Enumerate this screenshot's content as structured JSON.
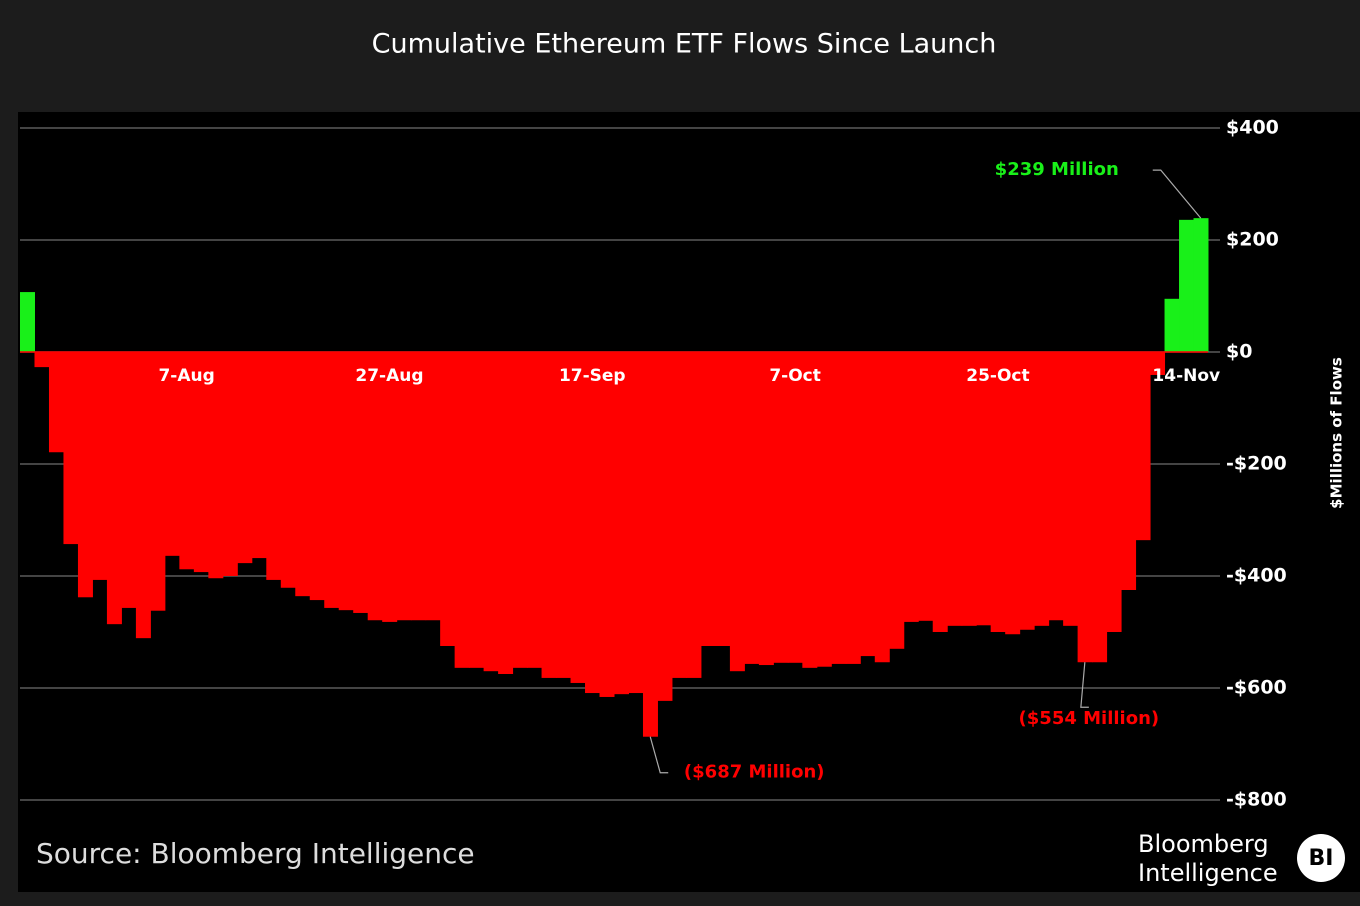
{
  "chart_data": {
    "type": "bar",
    "title": "Cumulative Ethereum ETF Flows Since Launch",
    "y_axis_label": "$Millions of Flows",
    "source": "Source: Bloomberg Intelligence",
    "categories": [
      null,
      null,
      null,
      null,
      null,
      null,
      null,
      null,
      null,
      null,
      null,
      "7-Aug",
      null,
      null,
      null,
      null,
      null,
      null,
      null,
      null,
      null,
      null,
      null,
      null,
      null,
      "27-Aug",
      null,
      null,
      null,
      null,
      null,
      null,
      null,
      null,
      null,
      null,
      null,
      null,
      null,
      "17-Sep",
      null,
      null,
      null,
      null,
      null,
      null,
      null,
      null,
      null,
      null,
      null,
      null,
      null,
      "7-Oct",
      null,
      null,
      null,
      null,
      null,
      null,
      null,
      null,
      null,
      null,
      null,
      null,
      null,
      "25-Oct",
      null,
      null,
      null,
      null,
      null,
      null,
      null,
      null,
      null,
      null,
      null,
      null,
      "14-Nov",
      null
    ],
    "values": [
      107,
      -27,
      -179,
      -343,
      -438,
      -407,
      -486,
      -457,
      -511,
      -462,
      -364,
      -388,
      -393,
      -404,
      -400,
      -377,
      -368,
      -407,
      -421,
      -436,
      -443,
      -457,
      -461,
      -466,
      -479,
      -482,
      -479,
      -479,
      -479,
      -525,
      -564,
      -564,
      -570,
      -575,
      -564,
      -564,
      -582,
      -582,
      -591,
      -609,
      -616,
      -611,
      -609,
      -687,
      -623,
      -582,
      -582,
      -525,
      -525,
      -570,
      -557,
      -559,
      -555,
      -555,
      -564,
      -562,
      -557,
      -557,
      -543,
      -554,
      -530,
      -482,
      -480,
      -500,
      -489,
      -489,
      -488,
      -500,
      -504,
      -496,
      -489,
      -479,
      -489,
      -554,
      -554,
      -500,
      -425,
      -336,
      -41,
      95,
      236,
      239
    ],
    "value_labels": [
      null,
      null,
      null,
      null,
      null,
      null,
      null,
      null,
      null,
      null,
      null,
      null,
      null,
      null,
      null,
      null,
      null,
      null,
      null,
      null,
      null,
      null,
      null,
      null,
      null,
      null,
      null,
      null,
      null,
      null,
      null,
      null,
      null,
      null,
      null,
      null,
      null,
      null,
      null,
      null,
      null,
      null,
      null,
      "($687 Million)",
      null,
      null,
      null,
      null,
      null,
      null,
      null,
      null,
      null,
      null,
      null,
      null,
      null,
      null,
      null,
      null,
      null,
      null,
      null,
      null,
      null,
      null,
      null,
      null,
      null,
      null,
      null,
      null,
      null,
      "($554 Million)",
      null,
      null,
      null,
      null,
      null,
      null,
      null,
      "$239 Million"
    ],
    "positive_color": "#19f019",
    "negative_color": "#ff0000",
    "ylim": [
      -800,
      400
    ],
    "yticks": [
      {
        "value": 400,
        "label": "$400"
      },
      {
        "value": 200,
        "label": "$200"
      },
      {
        "value": 0,
        "label": "$0"
      },
      {
        "value": -200,
        "label": "-$200"
      },
      {
        "value": -400,
        "label": "-$400"
      },
      {
        "value": -600,
        "label": "-$600"
      },
      {
        "value": -800,
        "label": "-$800"
      }
    ],
    "grid": true
  },
  "branding": {
    "line1": "Bloomberg",
    "line2": "Intelligence",
    "badge": "BI"
  }
}
